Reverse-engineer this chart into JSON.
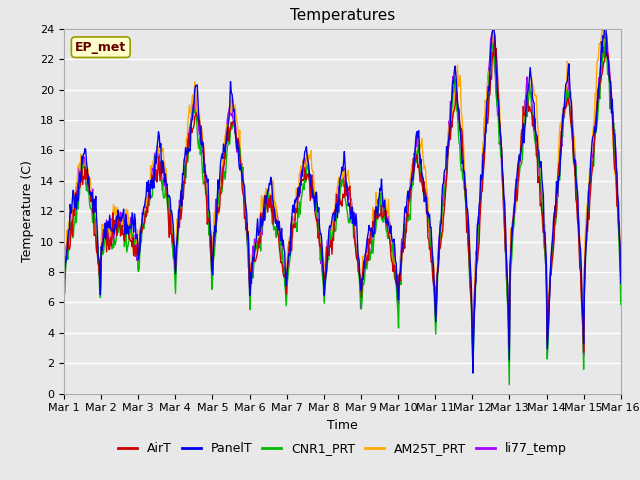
{
  "title": "Temperatures",
  "xlabel": "Time",
  "ylabel": "Temperature (C)",
  "ylim": [
    0,
    24
  ],
  "yticks": [
    0,
    2,
    4,
    6,
    8,
    10,
    12,
    14,
    16,
    18,
    20,
    22,
    24
  ],
  "n_days": 15,
  "n_per_day": 48,
  "annotation_text": "EP_met",
  "series_colors": {
    "AirT": "#cc0000",
    "PanelT": "#0000ee",
    "CNR1_PRT": "#00bb00",
    "AM25T_PRT": "#ffaa00",
    "li77_temp": "#aa00ff"
  },
  "series_order": [
    "li77_temp",
    "AM25T_PRT",
    "CNR1_PRT",
    "AirT",
    "PanelT"
  ],
  "legend_order": [
    "AirT",
    "PanelT",
    "CNR1_PRT",
    "AM25T_PRT",
    "li77_temp"
  ],
  "background_color": "#e8e8e8",
  "plot_bg_color": "#e8e8e8",
  "grid_color": "#ffffff",
  "title_fontsize": 11,
  "axis_fontsize": 9,
  "tick_fontsize": 8,
  "legend_fontsize": 9,
  "line_width": 1.0,
  "xtick_labels": [
    "Mar 1",
    "Mar 2",
    "Mar 3",
    "Mar 4",
    "Mar 5",
    "Mar 6",
    "Mar 7",
    "Mar 8",
    "Mar 9",
    "Mar 10",
    "Mar 11",
    "Mar 12",
    "Mar 13",
    "Mar 14",
    "Mar 15",
    "Mar 16"
  ],
  "xtick_positions": [
    0,
    1,
    2,
    3,
    4,
    5,
    6,
    7,
    8,
    9,
    10,
    11,
    12,
    13,
    14,
    15
  ]
}
